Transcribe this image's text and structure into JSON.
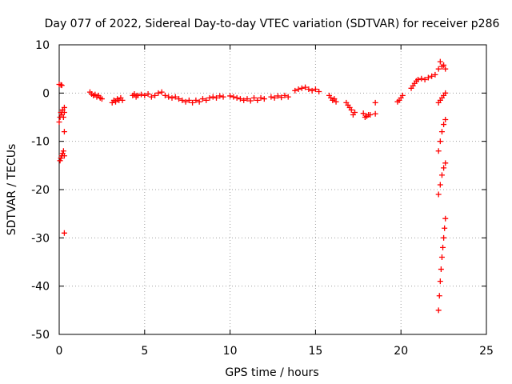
{
  "chart_data": {
    "type": "scatter",
    "title": "Day 077 of 2022, Sidereal Day-to-day VTEC variation (SDTVAR) for receiver p286",
    "xlabel": "GPS time / hours",
    "ylabel": "SDTVAR / TECUs",
    "xlim": [
      0,
      25
    ],
    "ylim": [
      -50,
      10
    ],
    "xticks": [
      0,
      5,
      10,
      15,
      20,
      25
    ],
    "yticks": [
      10,
      0,
      -10,
      -20,
      -30,
      -40,
      -50
    ],
    "grid": true,
    "marker": "plus",
    "color": "#ff0000",
    "series": [
      {
        "name": "SDTVAR",
        "points": [
          [
            0.0,
            1.8
          ],
          [
            0.1,
            1.7
          ],
          [
            0.15,
            1.6
          ],
          [
            0.0,
            -6.0
          ],
          [
            0.05,
            -5.0
          ],
          [
            0.1,
            -4.0
          ],
          [
            0.15,
            -4.5
          ],
          [
            0.2,
            -3.5
          ],
          [
            0.25,
            -5.0
          ],
          [
            0.3,
            -3.0
          ],
          [
            0.3,
            -4.0
          ],
          [
            0.05,
            -14.0
          ],
          [
            0.1,
            -13.5
          ],
          [
            0.15,
            -13.0
          ],
          [
            0.2,
            -12.5
          ],
          [
            0.25,
            -12.0
          ],
          [
            0.3,
            -13.0
          ],
          [
            0.3,
            -8.0
          ],
          [
            0.3,
            -29.0
          ],
          [
            1.8,
            0.2
          ],
          [
            1.9,
            -0.2
          ],
          [
            2.0,
            -0.5
          ],
          [
            2.1,
            -0.3
          ],
          [
            2.2,
            -0.8
          ],
          [
            2.3,
            -0.5
          ],
          [
            2.4,
            -1.0
          ],
          [
            2.5,
            -1.2
          ],
          [
            3.1,
            -2.0
          ],
          [
            3.2,
            -1.5
          ],
          [
            3.3,
            -1.8
          ],
          [
            3.4,
            -1.2
          ],
          [
            3.5,
            -1.5
          ],
          [
            3.6,
            -1.0
          ],
          [
            3.7,
            -1.5
          ],
          [
            4.3,
            -0.5
          ],
          [
            4.4,
            -0.2
          ],
          [
            4.5,
            -0.8
          ],
          [
            4.6,
            -0.5
          ],
          [
            4.8,
            -0.3
          ],
          [
            5.0,
            -0.5
          ],
          [
            5.2,
            -0.2
          ],
          [
            5.4,
            -0.8
          ],
          [
            5.6,
            -0.5
          ],
          [
            5.8,
            0.0
          ],
          [
            6.0,
            0.2
          ],
          [
            6.2,
            -0.5
          ],
          [
            6.4,
            -0.8
          ],
          [
            6.6,
            -1.0
          ],
          [
            6.8,
            -0.8
          ],
          [
            7.0,
            -1.2
          ],
          [
            7.2,
            -1.5
          ],
          [
            7.4,
            -1.8
          ],
          [
            7.6,
            -1.5
          ],
          [
            7.8,
            -2.0
          ],
          [
            8.0,
            -1.5
          ],
          [
            8.2,
            -1.8
          ],
          [
            8.4,
            -1.2
          ],
          [
            8.6,
            -1.5
          ],
          [
            8.8,
            -1.0
          ],
          [
            9.0,
            -0.8
          ],
          [
            9.2,
            -1.0
          ],
          [
            9.4,
            -0.6
          ],
          [
            9.6,
            -0.8
          ],
          [
            10.0,
            -0.6
          ],
          [
            10.2,
            -0.8
          ],
          [
            10.4,
            -1.0
          ],
          [
            10.6,
            -1.2
          ],
          [
            10.8,
            -1.5
          ],
          [
            11.0,
            -1.2
          ],
          [
            11.2,
            -1.6
          ],
          [
            11.4,
            -1.0
          ],
          [
            11.6,
            -1.5
          ],
          [
            11.8,
            -1.0
          ],
          [
            12.0,
            -1.2
          ],
          [
            12.4,
            -0.8
          ],
          [
            12.6,
            -1.0
          ],
          [
            12.8,
            -0.6
          ],
          [
            13.0,
            -0.9
          ],
          [
            13.2,
            -0.5
          ],
          [
            13.4,
            -0.8
          ],
          [
            13.8,
            0.5
          ],
          [
            14.0,
            0.8
          ],
          [
            14.2,
            1.0
          ],
          [
            14.4,
            1.2
          ],
          [
            14.6,
            0.8
          ],
          [
            14.8,
            0.5
          ],
          [
            15.0,
            0.8
          ],
          [
            15.2,
            0.3
          ],
          [
            15.8,
            -0.5
          ],
          [
            15.9,
            -1.0
          ],
          [
            16.0,
            -1.5
          ],
          [
            16.1,
            -1.2
          ],
          [
            16.2,
            -1.8
          ],
          [
            16.8,
            -2.0
          ],
          [
            16.9,
            -2.5
          ],
          [
            17.0,
            -3.0
          ],
          [
            17.1,
            -3.5
          ],
          [
            17.2,
            -4.5
          ],
          [
            17.3,
            -4.0
          ],
          [
            17.8,
            -4.2
          ],
          [
            17.9,
            -5.0
          ],
          [
            18.0,
            -4.8
          ],
          [
            18.1,
            -4.5
          ],
          [
            18.2,
            -4.5
          ],
          [
            18.5,
            -2.0
          ],
          [
            18.5,
            -4.3
          ],
          [
            19.8,
            -1.8
          ],
          [
            19.9,
            -1.5
          ],
          [
            20.0,
            -1.0
          ],
          [
            20.1,
            -0.5
          ],
          [
            20.6,
            1.0
          ],
          [
            20.7,
            1.5
          ],
          [
            20.8,
            2.0
          ],
          [
            20.9,
            2.5
          ],
          [
            21.0,
            2.8
          ],
          [
            21.2,
            3.0
          ],
          [
            21.4,
            2.8
          ],
          [
            21.6,
            3.2
          ],
          [
            21.8,
            3.5
          ],
          [
            22.0,
            3.8
          ],
          [
            22.2,
            5.0
          ],
          [
            22.3,
            6.5
          ],
          [
            22.4,
            5.5
          ],
          [
            22.5,
            5.8
          ],
          [
            22.6,
            5.0
          ],
          [
            22.2,
            -2.0
          ],
          [
            22.3,
            -1.5
          ],
          [
            22.4,
            -1.0
          ],
          [
            22.5,
            -0.5
          ],
          [
            22.6,
            0.0
          ],
          [
            22.2,
            -12.0
          ],
          [
            22.3,
            -10.0
          ],
          [
            22.4,
            -8.0
          ],
          [
            22.5,
            -6.5
          ],
          [
            22.6,
            -5.5
          ],
          [
            22.2,
            -21.0
          ],
          [
            22.3,
            -19.0
          ],
          [
            22.4,
            -17.0
          ],
          [
            22.5,
            -15.5
          ],
          [
            22.6,
            -14.5
          ],
          [
            22.2,
            -45.0
          ],
          [
            22.25,
            -42.0
          ],
          [
            22.3,
            -39.0
          ],
          [
            22.35,
            -36.5
          ],
          [
            22.4,
            -34.0
          ],
          [
            22.45,
            -32.0
          ],
          [
            22.5,
            -30.0
          ],
          [
            22.55,
            -28.0
          ],
          [
            22.6,
            -26.0
          ]
        ]
      }
    ]
  }
}
